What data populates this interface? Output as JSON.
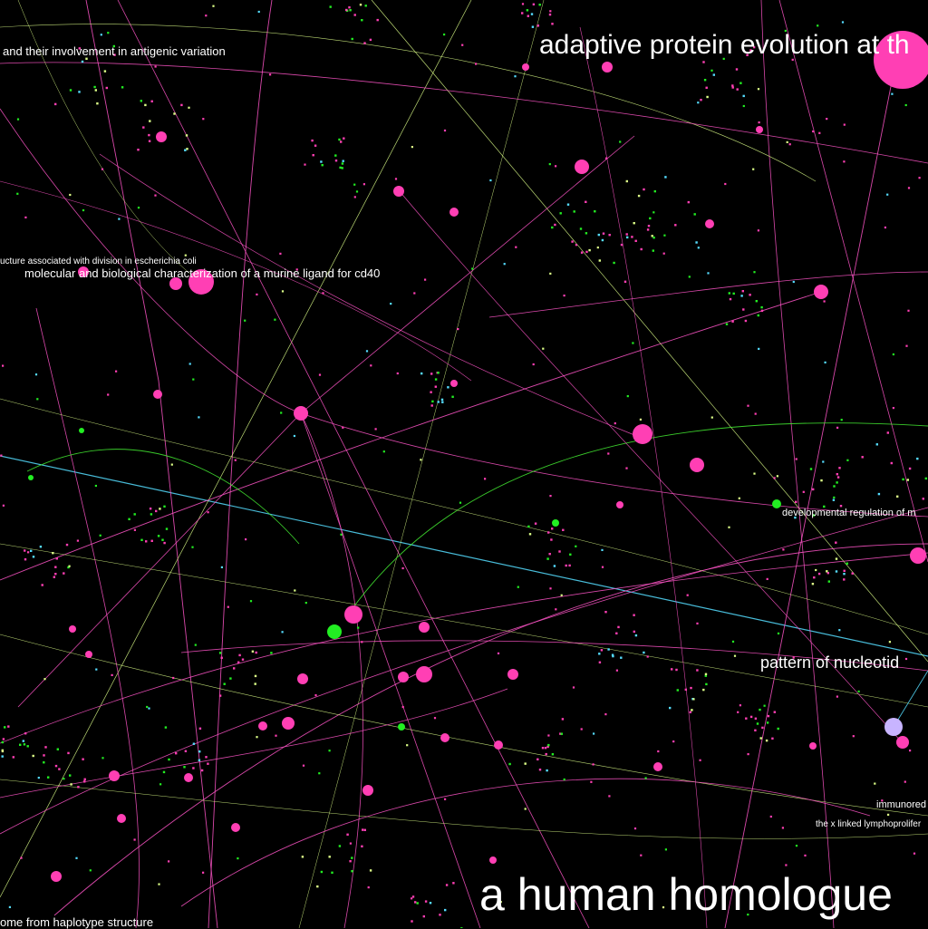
{
  "colors": {
    "background": "#000000",
    "primary_node": "#ff3fb4",
    "edge_pink": "#ff55c8",
    "edge_green": "#44ee33",
    "edge_yellow": "#ddff88",
    "edge_cyan": "#55ddff",
    "node_green": "#22ee22",
    "node_lavender": "#c8b4ff",
    "label_text": "#ffffff"
  },
  "labels": {
    "l1": "and their involvement in antigenic variation",
    "l2": "adaptive protein evolution at th",
    "l3": "ucture associated with division in escherichia coli",
    "l4": "molecular and biological characterization of a murine ligand for cd40",
    "l5": "developmental regulation of m",
    "l6": "pattern of nucleotid",
    "l7": "immunored",
    "l8": "the x linked lymphoprolifer",
    "l9": "a human homologue",
    "l10": "ome from haplotype structure"
  }
}
